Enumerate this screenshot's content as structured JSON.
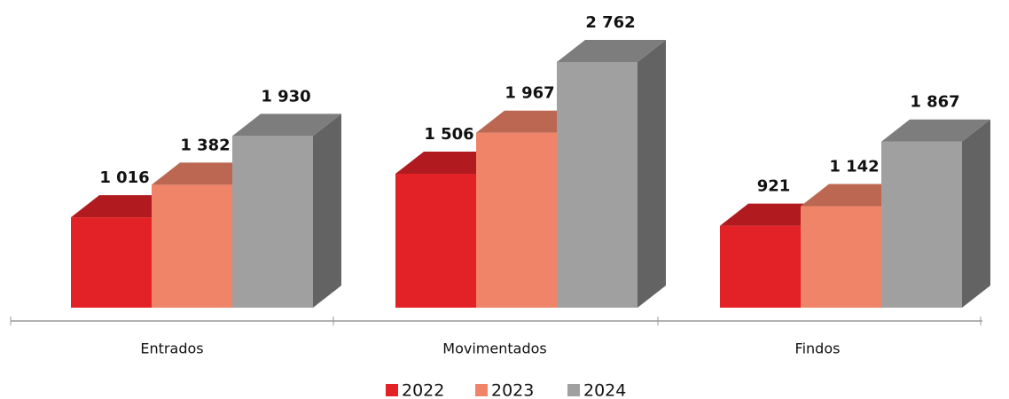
{
  "chart_data": {
    "type": "bar3d",
    "categories": [
      "Entrados",
      "Movimentados",
      "Findos"
    ],
    "series": [
      {
        "name": "2022",
        "color": "#e32228",
        "values": [
          1016,
          1506,
          921
        ],
        "value_labels": [
          "1 016",
          "1 506",
          "921"
        ]
      },
      {
        "name": "2023",
        "color": "#f08468",
        "values": [
          1382,
          1967,
          1142
        ],
        "value_labels": [
          "1 382",
          "1 967",
          "1 142"
        ]
      },
      {
        "name": "2024",
        "color": "#a0a0a0",
        "values": [
          1930,
          2762,
          1867
        ],
        "value_labels": [
          "1 930",
          "2 762",
          "1 867"
        ]
      }
    ]
  }
}
